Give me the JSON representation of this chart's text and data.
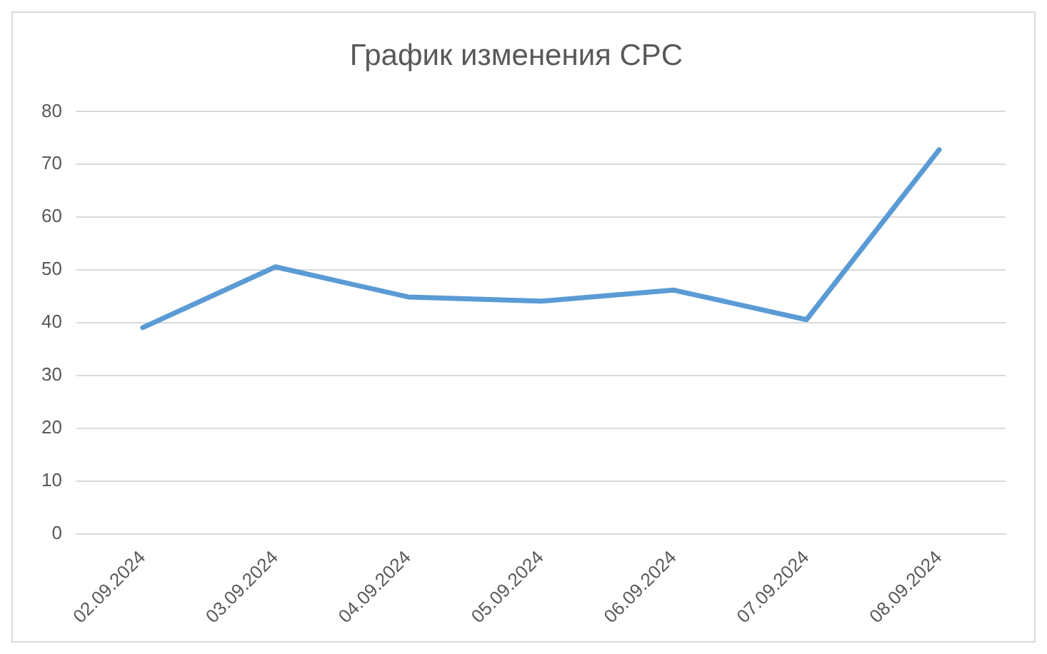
{
  "chart_data": {
    "type": "line",
    "title": "График изменения CPC",
    "categories": [
      "02.09.2024",
      "03.09.2024",
      "04.09.2024",
      "05.09.2024",
      "06.09.2024",
      "07.09.2024",
      "08.09.2024"
    ],
    "series": [
      {
        "color": "#5b9bd5",
        "values": [
          39.1,
          50.6,
          44.9,
          44.1,
          46.2,
          40.6,
          72.8
        ]
      }
    ],
    "ylim": [
      0,
      80
    ],
    "yticks": [
      0,
      10,
      20,
      30,
      40,
      50,
      60,
      70,
      80
    ],
    "grid": "y",
    "legend": false,
    "marker": "none",
    "line_style": "solid"
  }
}
